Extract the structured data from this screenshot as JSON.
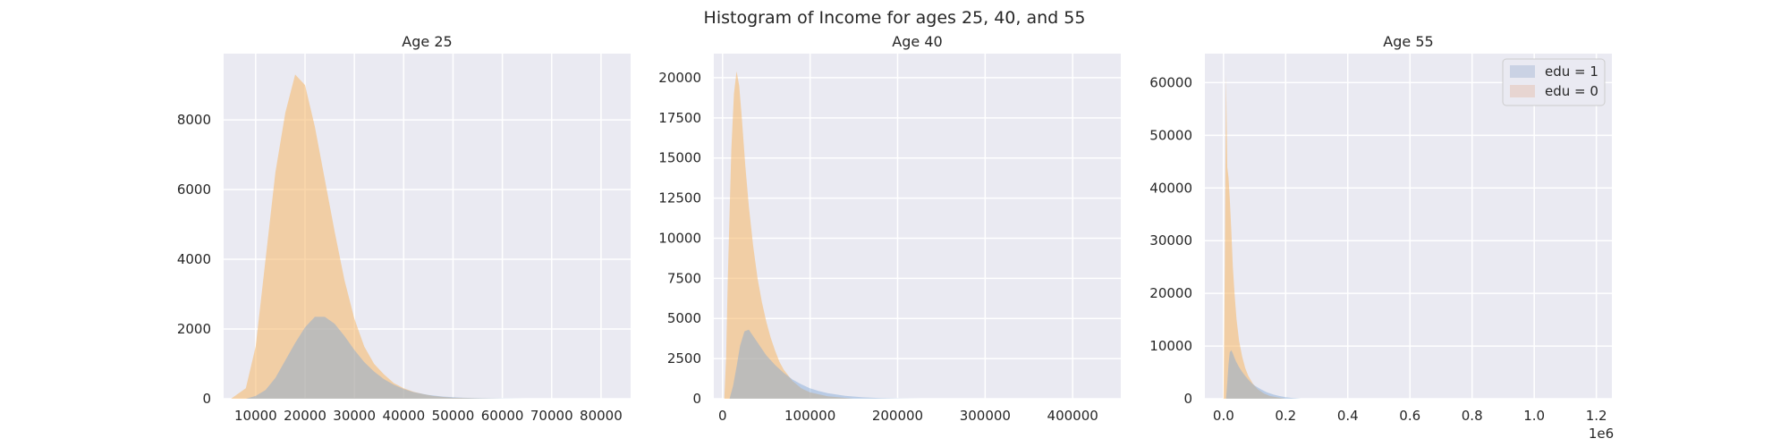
{
  "chart_data": {
    "suptitle": "Histogram of Income for ages 25, 40, and 55",
    "legend": {
      "placement": "top-right",
      "entries": [
        {
          "label": "edu = 1",
          "color": "#4c72b0"
        },
        {
          "label": "edu = 0",
          "color": "#dd8452"
        }
      ]
    },
    "colors": {
      "edu1": "#7fa7d4",
      "edu0": "#f5b766",
      "edu1_tail": "#8ecbe8",
      "background": "#eaeaf2",
      "grid": "#ffffff"
    },
    "grid": true,
    "panels": [
      {
        "type": "histogram",
        "title": "Age 25",
        "xlim": [
          3500,
          86000
        ],
        "ylim": [
          0,
          9900
        ],
        "xticks": [
          10000,
          20000,
          30000,
          40000,
          50000,
          60000,
          70000,
          80000
        ],
        "xtick_labels": [
          "10000",
          "20000",
          "30000",
          "40000",
          "50000",
          "60000",
          "70000",
          "80000"
        ],
        "yticks": [
          0,
          2000,
          4000,
          6000,
          8000
        ],
        "ytick_labels": [
          "0",
          "2000",
          "4000",
          "6000",
          "8000"
        ],
        "offset_label": "",
        "series": [
          {
            "name": "edu = 0",
            "x": [
              5000,
              8000,
              10000,
              12000,
              14000,
              16000,
              18000,
              20000,
              22000,
              24000,
              26000,
              28000,
              30000,
              32000,
              34000,
              36000,
              38000,
              40000,
              42000,
              44000,
              46000,
              48000,
              50000,
              55000,
              60000
            ],
            "y": [
              0,
              300,
              1500,
              4000,
              6500,
              8200,
              9300,
              9000,
              7800,
              6300,
              4800,
              3400,
              2300,
              1500,
              1000,
              700,
              450,
              300,
              200,
              130,
              80,
              50,
              30,
              10,
              0
            ]
          },
          {
            "name": "edu = 1",
            "x": [
              8000,
              10000,
              12000,
              14000,
              16000,
              18000,
              20000,
              22000,
              24000,
              26000,
              28000,
              30000,
              32000,
              34000,
              36000,
              38000,
              40000,
              42000,
              45000,
              48000,
              52000,
              56000,
              60000,
              65000
            ],
            "y": [
              0,
              80,
              250,
              600,
              1100,
              1600,
              2050,
              2350,
              2350,
              2150,
              1800,
              1400,
              1050,
              780,
              560,
              400,
              280,
              190,
              110,
              60,
              30,
              15,
              5,
              0
            ]
          }
        ]
      },
      {
        "type": "histogram",
        "title": "Age 40",
        "xlim": [
          -10000,
          455000
        ],
        "ylim": [
          0,
          21500
        ],
        "xticks": [
          0,
          100000,
          200000,
          300000,
          400000
        ],
        "xtick_labels": [
          "0",
          "100000",
          "200000",
          "300000",
          "400000"
        ],
        "yticks": [
          0,
          2500,
          5000,
          7500,
          10000,
          12500,
          15000,
          17500,
          20000
        ],
        "ytick_labels": [
          "0",
          "2500",
          "5000",
          "7500",
          "10000",
          "12500",
          "15000",
          "17500",
          "20000"
        ],
        "offset_label": "",
        "series": [
          {
            "name": "edu = 0",
            "x": [
              2000,
              4000,
              6000,
              8000,
              10000,
              13000,
              16000,
              19000,
              22000,
              26000,
              30000,
              35000,
              40000,
              45000,
              50000,
              55000,
              60000,
              65000,
              70000,
              80000,
              90000,
              100000,
              120000,
              150000
            ],
            "y": [
              0,
              2500,
              7500,
              11500,
              15500,
              19000,
              20400,
              19500,
              17500,
              14500,
              12000,
              9500,
              7500,
              6000,
              4800,
              3800,
              3000,
              2300,
              1800,
              1100,
              650,
              400,
              150,
              0
            ]
          },
          {
            "name": "edu = 1",
            "x": [
              8000,
              12000,
              16000,
              20000,
              25000,
              30000,
              35000,
              40000,
              45000,
              50000,
              55000,
              60000,
              70000,
              80000,
              90000,
              100000,
              110000,
              120000,
              140000,
              160000,
              180000,
              200000,
              230000
            ],
            "y": [
              0,
              800,
              2000,
              3300,
              4200,
              4300,
              3900,
              3500,
              3100,
              2700,
              2400,
              2100,
              1600,
              1200,
              900,
              650,
              480,
              350,
              180,
              90,
              40,
              15,
              0
            ]
          }
        ]
      },
      {
        "type": "histogram",
        "title": "Age 55",
        "xlim": [
          -60000,
          1250000
        ],
        "ylim": [
          0,
          65500
        ],
        "xticks": [
          0,
          200000,
          400000,
          600000,
          800000,
          1000000,
          1200000
        ],
        "xtick_labels": [
          "0.0",
          "0.2",
          "0.4",
          "0.6",
          "0.8",
          "1.0",
          "1.2"
        ],
        "yticks": [
          0,
          10000,
          20000,
          30000,
          40000,
          50000,
          60000
        ],
        "ytick_labels": [
          "0",
          "10000",
          "20000",
          "30000",
          "40000",
          "50000",
          "60000"
        ],
        "offset_label": "1e6",
        "series": [
          {
            "name": "edu = 0",
            "x": [
              0,
              4000,
              8000,
              12000,
              16000,
              20000,
              25000,
              30000,
              36000,
              42000,
              50000,
              60000,
              70000,
              80000,
              95000,
              110000,
              130000,
              150000,
              180000,
              200000
            ],
            "y": [
              0,
              25000,
              61500,
              44000,
              42000,
              38000,
              32000,
              25000,
              19500,
              15000,
              11000,
              8000,
              5800,
              4300,
              2800,
              1800,
              1000,
              500,
              200,
              0
            ]
          },
          {
            "name": "edu = 1",
            "x": [
              8000,
              12000,
              16000,
              20000,
              25000,
              30000,
              35000,
              40000,
              50000,
              60000,
              70000,
              80000,
              90000,
              100000,
              120000,
              140000,
              160000,
              180000,
              200000,
              220000,
              250000
            ],
            "y": [
              0,
              3000,
              6500,
              8800,
              9200,
              8600,
              7800,
              7100,
              6000,
              5100,
              4300,
              3600,
              3000,
              2500,
              1800,
              1200,
              800,
              500,
              300,
              150,
              0
            ]
          }
        ]
      }
    ]
  }
}
